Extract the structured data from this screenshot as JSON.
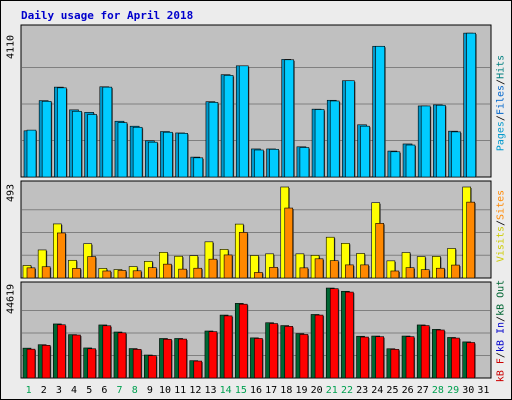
{
  "chart_data": {
    "type": "bar",
    "title": "Daily usage for April 2018",
    "categories": [
      "1",
      "2",
      "3",
      "4",
      "5",
      "6",
      "7",
      "8",
      "9",
      "10",
      "11",
      "12",
      "13",
      "14",
      "15",
      "16",
      "17",
      "18",
      "19",
      "20",
      "21",
      "22",
      "23",
      "24",
      "25",
      "26",
      "27",
      "28",
      "29",
      "30",
      "31"
    ],
    "weekend_days": [
      "1",
      "7",
      "8",
      "14",
      "15",
      "21",
      "22",
      "28",
      "29"
    ],
    "panels": [
      {
        "ymax_label": "4110",
        "ymax": 4110,
        "legend": [
          "Pages",
          "Files",
          "Hits"
        ],
        "series": [
          {
            "name": "Pages",
            "color": "#0099cc",
            "values": [
              1300,
              2150,
              2530,
              1890,
              1820,
              2540,
              1570,
              1430,
              1020,
              1280,
              1240,
              560,
              2120,
              2880,
              3130,
              790,
              790,
              3310,
              850,
              1910,
              2160,
              2710,
              1470,
              3680,
              730,
              930,
              2000,
              2030,
              1290,
              4050,
              0
            ]
          },
          {
            "name": "Files",
            "color": "#00ccff",
            "values": [
              1320,
              2130,
              2510,
              1850,
              1760,
              2530,
              1530,
              1400,
              980,
              1260,
              1230,
              540,
              2100,
              2860,
              3130,
              760,
              780,
              3300,
              830,
              1900,
              2140,
              2710,
              1430,
              3680,
              710,
              900,
              2000,
              2020,
              1270,
              4050,
              0
            ]
          },
          {
            "name": "Hits",
            "color": "#00ffff",
            "values": [
              0,
              0,
              0,
              0,
              0,
              0,
              0,
              0,
              0,
              0,
              0,
              0,
              0,
              0,
              0,
              0,
              0,
              0,
              0,
              0,
              0,
              0,
              0,
              0,
              0,
              0,
              0,
              0,
              0,
              0,
              0
            ]
          }
        ]
      },
      {
        "ymax_label": "493",
        "ymax": 493,
        "legend": [
          "Visits",
          "Sites",
          "Out"
        ],
        "series": [
          {
            "name": "Visits",
            "color": "#ffff00",
            "values": [
              68,
              152,
              293,
              96,
              186,
              52,
              46,
              62,
              90,
              139,
              118,
              121,
              196,
              155,
              292,
              122,
              131,
              493,
              131,
              123,
              221,
              188,
              133,
              408,
              93,
              138,
              116,
              117,
              160,
              493,
              0
            ]
          },
          {
            "name": "Sites",
            "color": "#ff8800",
            "values": [
              55,
              61,
              244,
              52,
              116,
              38,
              41,
              39,
              56,
              75,
              48,
              53,
              102,
              125,
              247,
              30,
              58,
              379,
              55,
              104,
              94,
              71,
              71,
              296,
              38,
              56,
              45,
              53,
              70,
              411,
              0
            ]
          }
        ]
      },
      {
        "ymax_label": "44619",
        "ymax": 44619,
        "legend": [
          "KBytes",
          "KB In",
          "KB Out"
        ],
        "legend_labels": [
          "kB F",
          "kB In",
          "kB Out"
        ],
        "series": [
          {
            "name": "KBytes",
            "color": "#006633",
            "values": [
              14800,
              16500,
              26800,
              21500,
              14900,
              26300,
              22800,
              14600,
              11400,
              19600,
              19600,
              8600,
              23300,
              31200,
              37000,
              19900,
              27400,
              26000,
              22000,
              31500,
              44600,
              43000,
              20700,
              20800,
              14500,
              20800,
              26300,
              24100,
              20100,
              17900,
              0
            ]
          },
          {
            "name": "KB In",
            "color": "#ff0000",
            "values": [
              14300,
              16200,
              26400,
              21300,
              14500,
              25900,
              22400,
              14200,
              11100,
              19200,
              19300,
              8400,
              23000,
              30800,
              36600,
              19600,
              27000,
              25600,
              21600,
              31200,
              44300,
              42600,
              20300,
              20500,
              14200,
              20500,
              26000,
              23800,
              19800,
              17600,
              0
            ]
          }
        ]
      }
    ]
  }
}
